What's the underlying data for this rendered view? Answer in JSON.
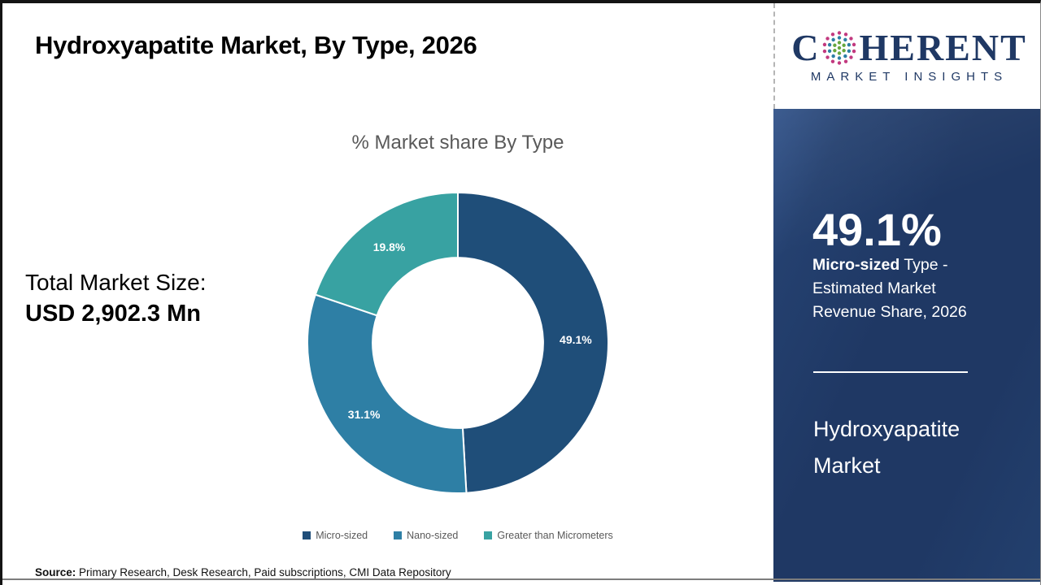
{
  "page": {
    "title": "Hydroxyapatite Market, By Type, 2026",
    "source_label": "Source:",
    "source_text": " Primary Research, Desk Research, Paid subscriptions, CMI Data Repository"
  },
  "total_market": {
    "label": "Total Market Size:",
    "value": "USD 2,902.3 Mn"
  },
  "chart_data": {
    "type": "pie",
    "subtype": "donut",
    "title": "% Market share By Type",
    "categories": [
      "Micro-sized",
      "Nano-sized",
      "Greater than Micrometers"
    ],
    "values": [
      49.1,
      31.1,
      19.8
    ],
    "labels": [
      "49.1%",
      "31.1%",
      "19.8%"
    ],
    "colors": [
      "#1f4e79",
      "#2e7fa5",
      "#38a2a2"
    ],
    "start_angle_deg": 0,
    "direction": "clockwise",
    "inner_radius_ratio": 0.567,
    "legend_position": "bottom",
    "label_color": "#ffffff"
  },
  "sidebar": {
    "background_color": "#1f3864",
    "highlight_value": "49.1%",
    "desc_bold": "Micro-sized",
    "desc_line1_rest": " Type -",
    "desc_line2": "Estimated Market",
    "desc_line3": "Revenue Share, 2026",
    "market_name_line1": "Hydroxyapatite",
    "market_name_line2": "Market"
  },
  "logo": {
    "prefix": "C",
    "suffix": "HERENT",
    "tagline": "MARKET INSIGHTS",
    "text_color": "#1f3864",
    "globe_colors": {
      "inner": "#66a73e",
      "middle": "#2e7fa5",
      "outer": "#c2397f"
    }
  }
}
